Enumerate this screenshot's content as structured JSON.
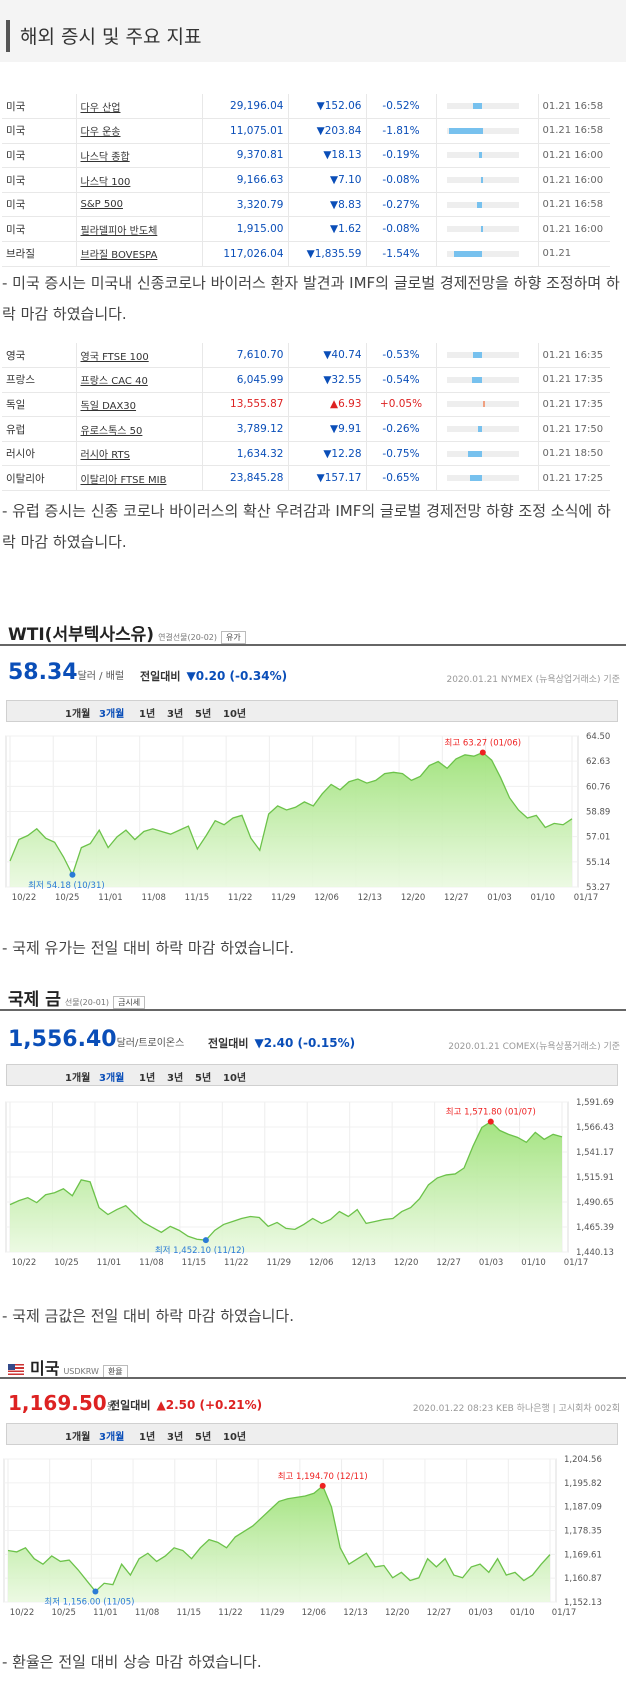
{
  "heading": "해외 증시 및 주요 지표",
  "us_markets": [
    {
      "country": "미국",
      "name": "다우 산업",
      "price": "29,196.04",
      "change": "▼152.06",
      "pct": "-0.52%",
      "bar": 0.52,
      "dir": "down",
      "time": "01.21 16:58"
    },
    {
      "country": "미국",
      "name": "다우 운송",
      "price": "11,075.01",
      "change": "▼203.84",
      "pct": "-1.81%",
      "bar": 1.81,
      "dir": "down",
      "time": "01.21 16:58"
    },
    {
      "country": "미국",
      "name": "나스닥 종합",
      "price": "9,370.81",
      "change": "▼18.13",
      "pct": "-0.19%",
      "bar": 0.19,
      "dir": "down",
      "time": "01.21 16:00"
    },
    {
      "country": "미국",
      "name": "나스닥 100",
      "price": "9,166.63",
      "change": "▼7.10",
      "pct": "-0.08%",
      "bar": 0.08,
      "dir": "down",
      "time": "01.21 16:00"
    },
    {
      "country": "미국",
      "name": "S&P 500",
      "price": "3,320.79",
      "change": "▼8.83",
      "pct": "-0.27%",
      "bar": 0.27,
      "dir": "down",
      "time": "01.21 16:58"
    },
    {
      "country": "미국",
      "name": "필라델피아 반도체",
      "price": "1,915.00",
      "change": "▼1.62",
      "pct": "-0.08%",
      "bar": 0.08,
      "dir": "down",
      "time": "01.21 16:00"
    },
    {
      "country": "브라질",
      "name": "브라질 BOVESPA",
      "price": "117,026.04",
      "change": "▼1,835.59",
      "pct": "-1.54%",
      "bar": 1.54,
      "dir": "down",
      "time": "01.21"
    }
  ],
  "us_comment": "- 미국 증시는 미국내 신종코로나 바이러스 환자 발견과 IMF의 글로벌 경제전망을 하향 조정하며 하락 마감 하였습니다.",
  "eu_markets": [
    {
      "country": "영국",
      "name": "영국 FTSE 100",
      "price": "7,610.70",
      "change": "▼40.74",
      "pct": "-0.53%",
      "bar": 0.53,
      "dir": "down",
      "time": "01.21 16:35"
    },
    {
      "country": "프랑스",
      "name": "프랑스 CAC 40",
      "price": "6,045.99",
      "change": "▼32.55",
      "pct": "-0.54%",
      "bar": 0.54,
      "dir": "down",
      "time": "01.21 17:35"
    },
    {
      "country": "독일",
      "name": "독일 DAX30",
      "price": "13,555.87",
      "change": "▲6.93",
      "pct": "+0.05%",
      "bar": 0.05,
      "dir": "up",
      "time": "01.21 17:35"
    },
    {
      "country": "유럽",
      "name": "유로스톡스 50",
      "price": "3,789.12",
      "change": "▼9.91",
      "pct": "-0.26%",
      "bar": 0.26,
      "dir": "down",
      "time": "01.21 17:50"
    },
    {
      "country": "러시아",
      "name": "러시아 RTS",
      "price": "1,634.32",
      "change": "▼12.28",
      "pct": "-0.75%",
      "bar": 0.75,
      "dir": "down",
      "time": "01.21 18:50"
    },
    {
      "country": "이탈리아",
      "name": "이탈리아 FTSE MIB",
      "price": "23,845.28",
      "change": "▼157.17",
      "pct": "-0.65%",
      "bar": 0.65,
      "dir": "down",
      "time": "01.21 17:25"
    }
  ],
  "eu_comment": "- 유럽 증시는 신종 코로나 바이러스의 확산 우려감과 IMF의 글로벌 경제전망 하향 조정 소식에 하락 마감 하였습니다.",
  "wti": {
    "title": "WTI(서부텍사스유)",
    "sub": "연결선물(20-02)",
    "btn": "유가",
    "price": "58.34",
    "unit": "달러 / 배럴",
    "chg_label": "전일대비",
    "chg": "▼0.20 (-0.34%)",
    "source": "2020.01.21 NYMEX (뉴욕상업거래소) 기준",
    "tabs": [
      "1개월",
      "3개월",
      "1년",
      "3년",
      "5년",
      "10년"
    ],
    "selected_tab": "3개월"
  },
  "wti_comment": "- 국제 유가는 전일 대비 하락 마감 하였습니다.",
  "gold": {
    "title": "국제 금",
    "sub": "선물(20-01)",
    "btn": "금시세",
    "price": "1,556.40",
    "unit": "달러/트로이온스",
    "chg_label": "전일대비",
    "chg": "▼2.40 (-0.15%)",
    "source": "2020.01.21 COMEX(뉴욕상품거래소) 기준",
    "tabs": [
      "1개월",
      "3개월",
      "1년",
      "3년",
      "5년",
      "10년"
    ],
    "selected_tab": "3개월"
  },
  "gold_comment": "- 국제 금값은 전일 대비 하락 마감 하였습니다.",
  "usd": {
    "title": "미국",
    "sub": "USDKRW",
    "btn": "환율",
    "price": "1,169.50",
    "unit": "원",
    "chg_label": "전일대비",
    "chg": "▲2.50 (+0.21%)",
    "source": "2020.01.22 08:23 KEB 하나은행 | 고시회차 002회",
    "tabs": [
      "1개월",
      "3개월",
      "1년",
      "3년",
      "5년",
      "10년"
    ],
    "selected_tab": "3개월"
  },
  "usd_comment": "- 환율은 전일 대비 상승 마감 하였습니다.",
  "chart_data": [
    {
      "type": "area",
      "x_ticks": [
        "10/22",
        "10/25",
        "11/01",
        "11/08",
        "11/15",
        "11/22",
        "11/29",
        "12/06",
        "12/13",
        "12/20",
        "12/27",
        "01/03",
        "01/10",
        "01/17"
      ],
      "y_ticks": [
        "64.50",
        "62.63",
        "60.76",
        "58.89",
        "57.01",
        "55.14",
        "53.27"
      ],
      "ylim": [
        53.27,
        64.5
      ],
      "high_label": "최고 63.27 (01/06)",
      "high": {
        "i": 53,
        "v": 63.27
      },
      "low_label": "최저 54.18 (10/31)",
      "low": {
        "i": 7,
        "v": 54.18
      },
      "values": [
        55.2,
        56.8,
        57.1,
        57.6,
        56.9,
        56.6,
        55.5,
        54.18,
        56.2,
        56.5,
        57.5,
        56.2,
        57.0,
        57.5,
        56.8,
        57.4,
        57.6,
        57.4,
        57.2,
        57.5,
        57.8,
        56.1,
        57.1,
        58.2,
        57.9,
        58.4,
        58.6,
        56.9,
        56.0,
        58.7,
        59.3,
        59.0,
        59.2,
        59.6,
        59.3,
        60.2,
        60.9,
        60.5,
        61.1,
        61.3,
        61.0,
        61.2,
        61.7,
        61.8,
        61.7,
        61.2,
        61.5,
        62.3,
        62.6,
        62.1,
        62.8,
        63.1,
        63.0,
        63.27,
        62.7,
        61.4,
        59.9,
        59.0,
        58.4,
        58.6,
        57.7,
        58.0,
        57.9,
        58.34
      ]
    },
    {
      "type": "area",
      "x_ticks": [
        "10/22",
        "10/25",
        "11/01",
        "11/08",
        "11/15",
        "11/22",
        "11/29",
        "12/06",
        "12/13",
        "12/20",
        "12/27",
        "01/03",
        "01/10",
        "01/17"
      ],
      "y_ticks": [
        "1,591.69",
        "1,566.43",
        "1,541.17",
        "1,515.91",
        "1,490.65",
        "1,465.39",
        "1,440.13"
      ],
      "ylim": [
        1440.13,
        1591.69
      ],
      "high_label": "최고 1,571.80 (01/07)",
      "high": {
        "i": 54,
        "v": 1571.8
      },
      "low_label": "최저 1,452.10 (11/12)",
      "low": {
        "i": 22,
        "v": 1452.1
      },
      "values": [
        1488,
        1492,
        1495,
        1490,
        1498,
        1500,
        1504,
        1497,
        1513,
        1511,
        1485,
        1478,
        1483,
        1487,
        1478,
        1470,
        1465,
        1460,
        1466,
        1462,
        1456,
        1453,
        1452.1,
        1462,
        1468,
        1471,
        1474,
        1476,
        1475,
        1466,
        1470,
        1464,
        1463,
        1468,
        1474,
        1469,
        1473,
        1481,
        1476,
        1483,
        1469,
        1471,
        1473,
        1474,
        1481,
        1485,
        1494,
        1508,
        1515,
        1518,
        1519,
        1525,
        1547,
        1566,
        1571.8,
        1563,
        1559,
        1556,
        1551,
        1561,
        1554,
        1559,
        1556.4
      ]
    },
    {
      "type": "area",
      "x_ticks": [
        "10/22",
        "10/25",
        "11/01",
        "11/08",
        "11/15",
        "11/22",
        "11/29",
        "12/06",
        "12/13",
        "12/20",
        "12/27",
        "01/03",
        "01/10",
        "01/17"
      ],
      "y_ticks": [
        "1,204.56",
        "1,195.82",
        "1,187.09",
        "1,178.35",
        "1,169.61",
        "1,160.87",
        "1,152.13"
      ],
      "ylim": [
        1152.13,
        1204.56
      ],
      "high_label": "최고 1,194.70 (12/11)",
      "high": {
        "i": 36,
        "v": 1194.7
      },
      "low_label": "최저 1,156.00 (11/05)",
      "low": {
        "i": 10,
        "v": 1156.0
      },
      "values": [
        1171,
        1170.5,
        1172,
        1168,
        1166,
        1169,
        1167,
        1167.5,
        1164,
        1160,
        1156.0,
        1159,
        1158.5,
        1166,
        1162,
        1168,
        1170,
        1167,
        1169,
        1172,
        1171,
        1168,
        1172,
        1175,
        1174,
        1172,
        1176,
        1178,
        1180,
        1183,
        1186,
        1189,
        1190,
        1190.5,
        1191,
        1192,
        1194.7,
        1187,
        1172,
        1166,
        1168,
        1170,
        1165,
        1165.5,
        1161,
        1163,
        1160,
        1161,
        1168,
        1165,
        1168,
        1162,
        1161,
        1165,
        1166,
        1163,
        1168,
        1162,
        1163,
        1160,
        1162,
        1166,
        1169.5
      ]
    }
  ]
}
